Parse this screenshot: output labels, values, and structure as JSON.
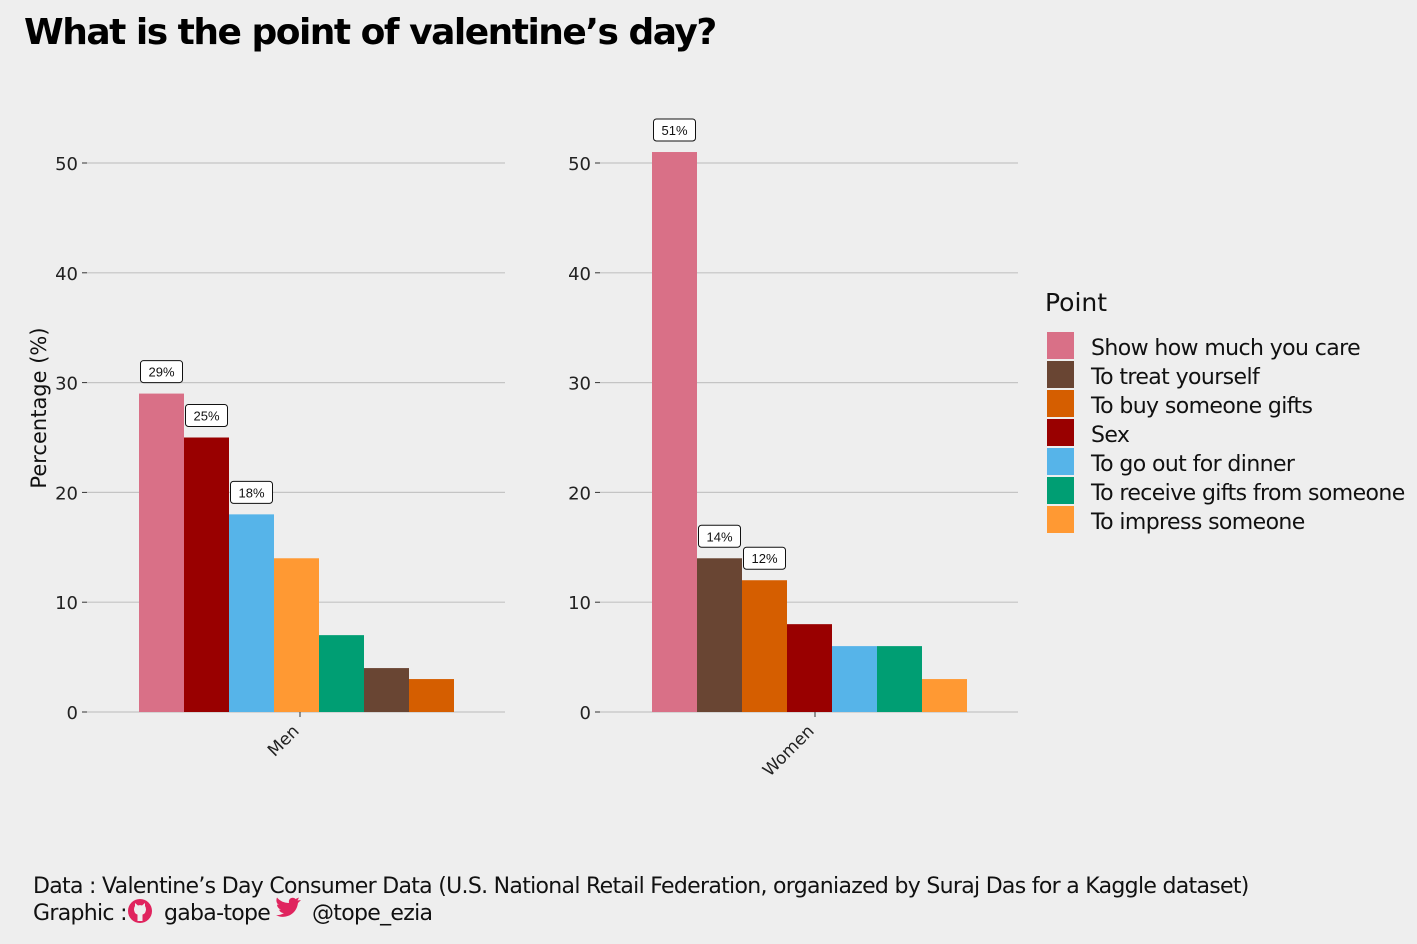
{
  "title": "What is the point of valentine’s day?",
  "chart_data": {
    "type": "bar",
    "ylabel": "Percentage (%)",
    "ylim": [
      0,
      55
    ],
    "yticks": [
      0,
      10,
      20,
      30,
      40,
      50
    ],
    "grid": true,
    "legend": {
      "title": "Point",
      "placement": "right",
      "entries": [
        {
          "name": "Show how much you care",
          "color": "#d97087"
        },
        {
          "name": "To treat yourself",
          "color": "#694533"
        },
        {
          "name": "To buy someone gifts",
          "color": "#d55e00"
        },
        {
          "name": "Sex",
          "color": "#990000"
        },
        {
          "name": "To go out for dinner",
          "color": "#56b4e9"
        },
        {
          "name": "To receive gifts from someone",
          "color": "#009e73"
        },
        {
          "name": "To impress someone",
          "color": "#ff9933"
        }
      ]
    },
    "panels": [
      {
        "category": "Men",
        "bars": [
          {
            "point": "Show how much you care",
            "value": 29,
            "label": "29%"
          },
          {
            "point": "Sex",
            "value": 25,
            "label": "25%"
          },
          {
            "point": "To go out for dinner",
            "value": 18,
            "label": "18%"
          },
          {
            "point": "To impress someone",
            "value": 14
          },
          {
            "point": "To receive gifts from someone",
            "value": 7
          },
          {
            "point": "To treat yourself",
            "value": 4
          },
          {
            "point": "To buy someone gifts",
            "value": 3
          }
        ]
      },
      {
        "category": "Women",
        "bars": [
          {
            "point": "Show how much you care",
            "value": 51,
            "label": "51%"
          },
          {
            "point": "To treat yourself",
            "value": 14,
            "label": "14%"
          },
          {
            "point": "To buy someone gifts",
            "value": 12,
            "label": "12%"
          },
          {
            "point": "Sex",
            "value": 8
          },
          {
            "point": "To go out for dinner",
            "value": 6
          },
          {
            "point": "To receive gifts from someone",
            "value": 6
          },
          {
            "point": "To impress someone",
            "value": 3
          }
        ]
      }
    ]
  },
  "caption": {
    "data_line": "Data : Valentine’s Day Consumer Data (U.S. National Retail Federation, organiazed by Suraj Das for a Kaggle dataset)",
    "graphic_prefix": "Graphic :",
    "github_handle": "gaba-tope",
    "twitter_handle": "@tope_ezia",
    "github_icon": "github-icon",
    "twitter_icon": "twitter-icon",
    "github_color": "#e0245e",
    "twitter_color": "#e0245e"
  }
}
